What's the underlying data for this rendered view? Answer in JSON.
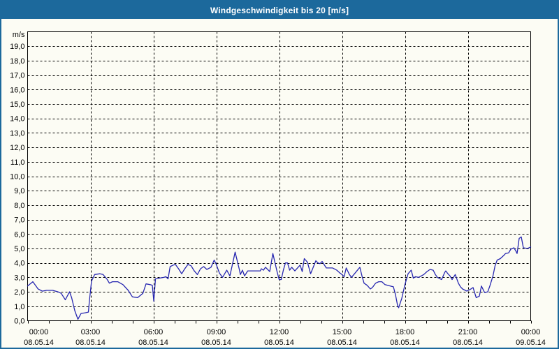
{
  "window": {
    "title": "Windgeschwindigkeit bis 20 [m/s]"
  },
  "colors": {
    "titlebar_bg": "#1c699c",
    "frame": "#1c699c",
    "background": "#fcfcf4",
    "axis": "#000000",
    "grid": "#000000",
    "series_line": "#2626b0"
  },
  "chart_data": {
    "type": "line",
    "title": "Windgeschwindigkeit bis 20 [m/s]",
    "ylabel": "m/s",
    "ylim": [
      0,
      20
    ],
    "grid": "dashed",
    "legend_position": "none",
    "ytick_labels_top_down": [
      "19,0",
      "18,0",
      "17,0",
      "16,0",
      "15,0",
      "14,0",
      "13,0",
      "12,0",
      "11,0",
      "10,0",
      "9,0",
      "8,0",
      "7,0",
      "6,0",
      "5,0",
      "4,0",
      "3,0",
      "2,0",
      "1,0",
      "0,0"
    ],
    "xticks": [
      {
        "hour": 0,
        "time": "00:00",
        "date": "08.05.14"
      },
      {
        "hour": 3,
        "time": "03:00",
        "date": "08.05.14"
      },
      {
        "hour": 6,
        "time": "06:00",
        "date": "08.05.14"
      },
      {
        "hour": 9,
        "time": "09:00",
        "date": "08.05.14"
      },
      {
        "hour": 12,
        "time": "12:00",
        "date": "08.05.14"
      },
      {
        "hour": 15,
        "time": "15:00",
        "date": "08.05.14"
      },
      {
        "hour": 18,
        "time": "18:00",
        "date": "08.05.14"
      },
      {
        "hour": 21,
        "time": "21:00",
        "date": "08.05.14"
      },
      {
        "hour": 24,
        "time": "00:00",
        "date": "09.05.14"
      }
    ],
    "minor_tick_every_hours": 1,
    "series": [
      {
        "name": "Windgeschwindigkeit [m/s]",
        "color": "#2626b0",
        "points": [
          [
            0.0,
            2.4
          ],
          [
            0.25,
            2.7
          ],
          [
            0.5,
            2.2
          ],
          [
            0.7,
            2.05
          ],
          [
            0.9,
            2.1
          ],
          [
            1.2,
            2.1
          ],
          [
            1.45,
            2.0
          ],
          [
            1.6,
            1.9
          ],
          [
            1.8,
            1.45
          ],
          [
            2.0,
            2.0
          ],
          [
            2.1,
            1.6
          ],
          [
            2.25,
            0.7
          ],
          [
            2.4,
            0.1
          ],
          [
            2.55,
            0.5
          ],
          [
            2.75,
            0.55
          ],
          [
            2.9,
            0.6
          ],
          [
            2.95,
            1.4
          ],
          [
            3.05,
            2.75
          ],
          [
            3.2,
            3.2
          ],
          [
            3.45,
            3.25
          ],
          [
            3.6,
            3.2
          ],
          [
            3.8,
            2.85
          ],
          [
            3.9,
            2.6
          ],
          [
            4.05,
            2.7
          ],
          [
            4.3,
            2.7
          ],
          [
            4.55,
            2.5
          ],
          [
            4.8,
            2.1
          ],
          [
            5.0,
            1.65
          ],
          [
            5.25,
            1.6
          ],
          [
            5.5,
            1.9
          ],
          [
            5.65,
            2.55
          ],
          [
            5.85,
            2.5
          ],
          [
            5.95,
            2.45
          ],
          [
            6.02,
            1.35
          ],
          [
            6.1,
            2.9
          ],
          [
            6.3,
            2.95
          ],
          [
            6.5,
            3.0
          ],
          [
            6.6,
            3.05
          ],
          [
            6.7,
            2.9
          ],
          [
            6.8,
            3.75
          ],
          [
            6.95,
            3.85
          ],
          [
            7.05,
            3.9
          ],
          [
            7.2,
            3.6
          ],
          [
            7.35,
            3.25
          ],
          [
            7.5,
            3.6
          ],
          [
            7.65,
            3.9
          ],
          [
            7.8,
            3.8
          ],
          [
            7.95,
            3.45
          ],
          [
            8.1,
            3.2
          ],
          [
            8.25,
            3.6
          ],
          [
            8.4,
            3.75
          ],
          [
            8.55,
            3.55
          ],
          [
            8.75,
            3.7
          ],
          [
            8.9,
            4.2
          ],
          [
            9.0,
            3.9
          ],
          [
            9.15,
            3.3
          ],
          [
            9.3,
            3.0
          ],
          [
            9.5,
            3.5
          ],
          [
            9.65,
            3.1
          ],
          [
            9.9,
            4.75
          ],
          [
            10.1,
            3.55
          ],
          [
            10.15,
            3.2
          ],
          [
            10.25,
            3.5
          ],
          [
            10.35,
            3.1
          ],
          [
            10.5,
            3.45
          ],
          [
            10.8,
            3.45
          ],
          [
            11.1,
            3.45
          ],
          [
            11.15,
            3.6
          ],
          [
            11.25,
            3.5
          ],
          [
            11.35,
            3.7
          ],
          [
            11.55,
            3.4
          ],
          [
            11.7,
            4.65
          ],
          [
            11.9,
            3.4
          ],
          [
            12.0,
            2.85
          ],
          [
            12.1,
            2.85
          ],
          [
            12.2,
            3.5
          ],
          [
            12.3,
            4.0
          ],
          [
            12.4,
            4.0
          ],
          [
            12.5,
            3.5
          ],
          [
            12.6,
            3.7
          ],
          [
            12.75,
            3.45
          ],
          [
            13.0,
            3.85
          ],
          [
            13.1,
            3.4
          ],
          [
            13.2,
            4.3
          ],
          [
            13.35,
            4.05
          ],
          [
            13.5,
            3.25
          ],
          [
            13.75,
            4.15
          ],
          [
            13.85,
            4.0
          ],
          [
            13.95,
            3.95
          ],
          [
            14.05,
            4.1
          ],
          [
            14.25,
            3.65
          ],
          [
            14.55,
            3.65
          ],
          [
            14.75,
            3.5
          ],
          [
            14.9,
            3.3
          ],
          [
            15.0,
            3.2
          ],
          [
            15.1,
            3.05
          ],
          [
            15.2,
            3.65
          ],
          [
            15.35,
            3.2
          ],
          [
            15.45,
            3.0
          ],
          [
            15.65,
            3.35
          ],
          [
            15.85,
            3.7
          ],
          [
            15.95,
            3.1
          ],
          [
            16.05,
            2.6
          ],
          [
            16.2,
            2.45
          ],
          [
            16.35,
            2.2
          ],
          [
            16.45,
            2.3
          ],
          [
            16.6,
            2.6
          ],
          [
            16.75,
            2.7
          ],
          [
            16.9,
            2.7
          ],
          [
            17.05,
            2.5
          ],
          [
            17.3,
            2.4
          ],
          [
            17.45,
            2.35
          ],
          [
            17.55,
            1.8
          ],
          [
            17.65,
            1.05
          ],
          [
            17.7,
            0.9
          ],
          [
            17.85,
            1.55
          ],
          [
            18.0,
            2.5
          ],
          [
            18.15,
            3.25
          ],
          [
            18.3,
            3.5
          ],
          [
            18.4,
            2.95
          ],
          [
            18.5,
            3.05
          ],
          [
            18.65,
            3.0
          ],
          [
            18.9,
            3.2
          ],
          [
            19.05,
            3.4
          ],
          [
            19.2,
            3.55
          ],
          [
            19.35,
            3.5
          ],
          [
            19.45,
            3.2
          ],
          [
            19.55,
            3.0
          ],
          [
            19.75,
            2.85
          ],
          [
            19.9,
            3.35
          ],
          [
            19.95,
            3.45
          ],
          [
            20.05,
            3.25
          ],
          [
            20.15,
            3.1
          ],
          [
            20.25,
            2.85
          ],
          [
            20.4,
            3.2
          ],
          [
            20.55,
            2.6
          ],
          [
            20.65,
            2.35
          ],
          [
            20.75,
            2.2
          ],
          [
            20.95,
            2.05
          ],
          [
            21.15,
            2.2
          ],
          [
            21.25,
            2.3
          ],
          [
            21.4,
            1.6
          ],
          [
            21.55,
            1.7
          ],
          [
            21.65,
            2.4
          ],
          [
            21.8,
            1.95
          ],
          [
            21.95,
            2.0
          ],
          [
            22.05,
            2.4
          ],
          [
            22.2,
            3.1
          ],
          [
            22.3,
            3.8
          ],
          [
            22.4,
            4.2
          ],
          [
            22.55,
            4.3
          ],
          [
            22.7,
            4.5
          ],
          [
            22.8,
            4.65
          ],
          [
            22.95,
            4.7
          ],
          [
            23.05,
            4.95
          ],
          [
            23.2,
            5.05
          ],
          [
            23.3,
            4.8
          ],
          [
            23.35,
            4.65
          ],
          [
            23.45,
            5.7
          ],
          [
            23.55,
            5.8
          ],
          [
            23.65,
            5.05
          ],
          [
            23.85,
            5.0
          ],
          [
            24.0,
            5.1
          ]
        ]
      }
    ]
  }
}
